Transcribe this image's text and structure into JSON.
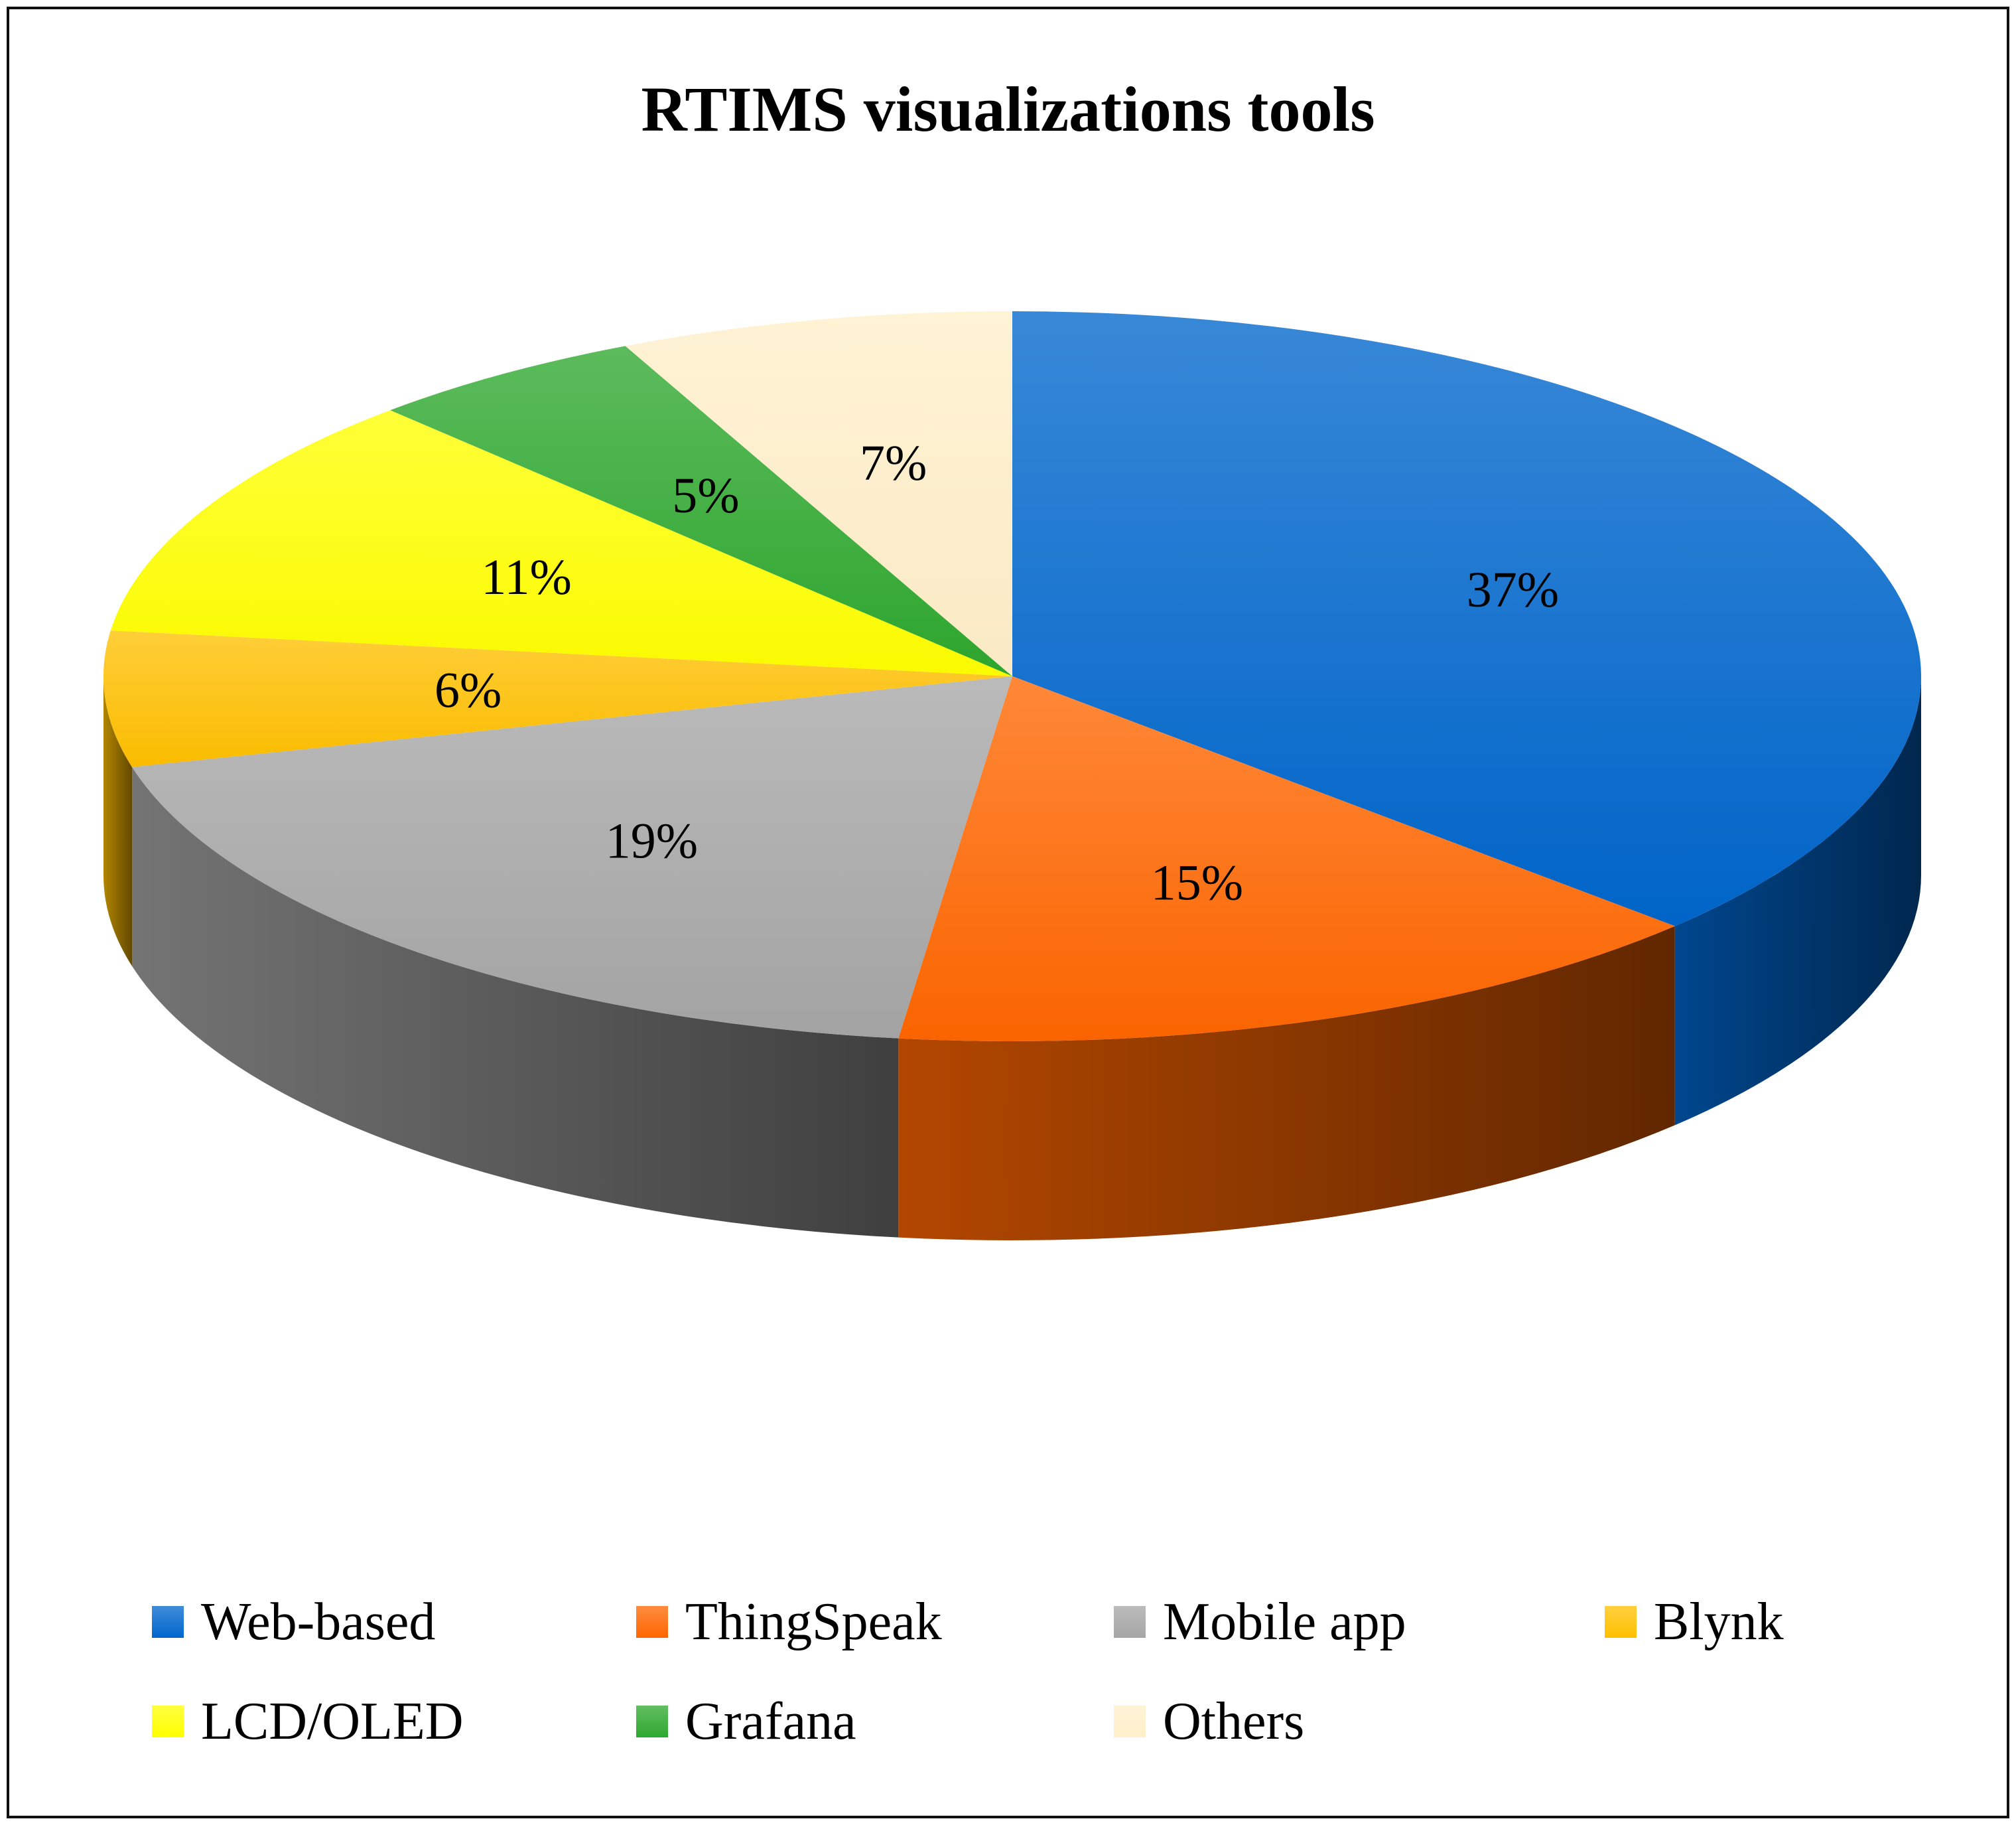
{
  "chart_data": {
    "type": "pie",
    "title": "RTIMS visualizations tools",
    "style": "3d",
    "legend_position": "bottom",
    "unit": "%",
    "slices": [
      {
        "label": "Web-based",
        "value": 37,
        "display": "37%",
        "color": "#0066CC"
      },
      {
        "label": "ThingSpeak",
        "value": 15,
        "display": "15%",
        "color": "#FF6600"
      },
      {
        "label": "Mobile app",
        "value": 19,
        "display": "19%",
        "color": "#A6A6A6"
      },
      {
        "label": "Blynk",
        "value": 6,
        "display": "6%",
        "color": "#FFC000"
      },
      {
        "label": "LCD/OLED",
        "value": 11,
        "display": "11%",
        "color": "#FFFF00"
      },
      {
        "label": "Grafana",
        "value": 5,
        "display": "5%",
        "color": "#2EA82E"
      },
      {
        "label": "Others",
        "value": 7,
        "display": "7%",
        "color": "#FFEFC9"
      }
    ]
  }
}
